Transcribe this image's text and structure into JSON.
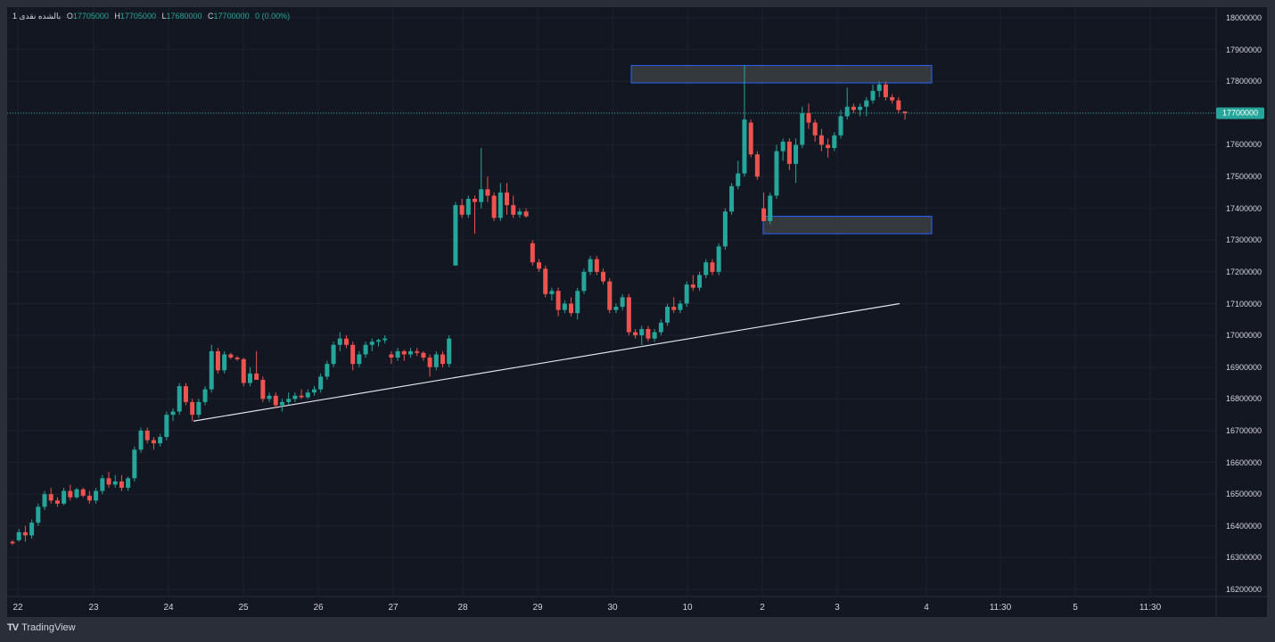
{
  "header": {
    "symbol": "1 بالشده نقدی",
    "o_label": "O",
    "o": "17705000",
    "h_label": "H",
    "h": "17705000",
    "l_label": "L",
    "l": "17680000",
    "c_label": "C",
    "c": "17700000",
    "change": "0 (0.00%)"
  },
  "footer": {
    "logo": "TV",
    "brand": "TradingView"
  },
  "colors": {
    "up": "#26a69a",
    "down": "#ef5350",
    "background": "#131722",
    "grid": "#1e222d",
    "zone": "#3c4043",
    "zone_border": "#2962ff"
  },
  "chart_data": {
    "type": "candlestick",
    "title": "",
    "ylim": [
      16170000,
      18050000
    ],
    "y_ticks": [
      "18000000",
      "17900000",
      "17800000",
      "17700000",
      "17600000",
      "17500000",
      "17400000",
      "17300000",
      "17200000",
      "17100000",
      "17000000",
      "16900000",
      "16800000",
      "16700000",
      "16600000",
      "16500000",
      "16400000",
      "16300000",
      "16200000"
    ],
    "x_ticks": [
      "22",
      "23",
      "24",
      "25",
      "26",
      "27",
      "28",
      "29",
      "30",
      "10",
      "2",
      "3",
      "4",
      "11:30",
      "5",
      "11:30"
    ],
    "last_price": "17700000",
    "candles": [
      [
        16350000,
        16355000,
        16340000,
        16345000
      ],
      [
        16355000,
        16390000,
        16350000,
        16380000
      ],
      [
        16380000,
        16400000,
        16350000,
        16370000
      ],
      [
        16370000,
        16420000,
        16360000,
        16410000
      ],
      [
        16410000,
        16470000,
        16400000,
        16460000
      ],
      [
        16460000,
        16510000,
        16450000,
        16500000
      ],
      [
        16500000,
        16520000,
        16470000,
        16480000
      ],
      [
        16480000,
        16490000,
        16460000,
        16470000
      ],
      [
        16470000,
        16520000,
        16465000,
        16510000
      ],
      [
        16510000,
        16530000,
        16480000,
        16490000
      ],
      [
        16490000,
        16520000,
        16485000,
        16515000
      ],
      [
        16515000,
        16520000,
        16490000,
        16495000
      ],
      [
        16495000,
        16510000,
        16470000,
        16480000
      ],
      [
        16480000,
        16520000,
        16470000,
        16510000
      ],
      [
        16510000,
        16560000,
        16500000,
        16550000
      ],
      [
        16550000,
        16570000,
        16520000,
        16530000
      ],
      [
        16530000,
        16560000,
        16520000,
        16540000
      ],
      [
        16540000,
        16560000,
        16510000,
        16520000
      ],
      [
        16520000,
        16555000,
        16510000,
        16550000
      ],
      [
        16550000,
        16650000,
        16540000,
        16640000
      ],
      [
        16640000,
        16710000,
        16630000,
        16700000
      ],
      [
        16700000,
        16710000,
        16660000,
        16670000
      ],
      [
        16670000,
        16680000,
        16640000,
        16660000
      ],
      [
        16660000,
        16690000,
        16650000,
        16680000
      ],
      [
        16680000,
        16760000,
        16670000,
        16750000
      ],
      [
        16750000,
        16770000,
        16730000,
        16760000
      ],
      [
        16760000,
        16850000,
        16750000,
        16840000
      ],
      [
        16840000,
        16850000,
        16780000,
        16790000
      ],
      [
        16790000,
        16800000,
        16730000,
        16750000
      ],
      [
        16750000,
        16800000,
        16740000,
        16790000
      ],
      [
        16790000,
        16840000,
        16780000,
        16830000
      ],
      [
        16830000,
        16970000,
        16820000,
        16950000
      ],
      [
        16950000,
        16960000,
        16880000,
        16890000
      ],
      [
        16890000,
        16950000,
        16880000,
        16940000
      ],
      [
        16940000,
        16945000,
        16925000,
        16930000
      ],
      [
        16930000,
        16935000,
        16920000,
        16925000
      ],
      [
        16925000,
        16930000,
        16840000,
        16850000
      ],
      [
        16850000,
        16900000,
        16840000,
        16880000
      ],
      [
        16880000,
        16950000,
        16860000,
        16860000
      ],
      [
        16860000,
        16870000,
        16790000,
        16800000
      ],
      [
        16800000,
        16820000,
        16790000,
        16810000
      ],
      [
        16810000,
        16820000,
        16770000,
        16780000
      ],
      [
        16780000,
        16800000,
        16760000,
        16790000
      ],
      [
        16790000,
        16820000,
        16780000,
        16800000
      ],
      [
        16800000,
        16820000,
        16790000,
        16810000
      ],
      [
        16810000,
        16830000,
        16800000,
        16805000
      ],
      [
        16805000,
        16830000,
        16800000,
        16820000
      ],
      [
        16820000,
        16840000,
        16810000,
        16830000
      ],
      [
        16830000,
        16880000,
        16820000,
        16870000
      ],
      [
        16870000,
        16920000,
        16860000,
        16910000
      ],
      [
        16910000,
        16980000,
        16900000,
        16970000
      ],
      [
        16970000,
        17010000,
        16950000,
        16990000
      ],
      [
        16990000,
        17000000,
        16960000,
        16970000
      ],
      [
        16970000,
        16980000,
        16890000,
        16910000
      ],
      [
        16910000,
        16950000,
        16900000,
        16940000
      ],
      [
        16940000,
        16980000,
        16930000,
        16970000
      ],
      [
        16970000,
        16990000,
        16950000,
        16980000
      ],
      [
        16980000,
        16990000,
        16965000,
        16985000
      ],
      [
        16985000,
        17000000,
        16975000,
        16990000
      ],
      [
        16940000,
        16950000,
        16910000,
        16930000
      ],
      [
        16930000,
        16960000,
        16920000,
        16950000
      ],
      [
        16950000,
        16955000,
        16920000,
        16940000
      ],
      [
        16940000,
        16960000,
        16930000,
        16950000
      ],
      [
        16950000,
        16960000,
        16935000,
        16945000
      ],
      [
        16945000,
        16950000,
        16920000,
        16930000
      ],
      [
        16930000,
        16940000,
        16870000,
        16900000
      ],
      [
        16900000,
        16950000,
        16890000,
        16940000
      ],
      [
        16940000,
        16950000,
        16900000,
        16910000
      ],
      [
        16910000,
        17000000,
        16900000,
        16990000
      ],
      [
        17220000,
        17420000,
        17220000,
        17410000
      ],
      [
        17410000,
        17430000,
        17370000,
        17380000
      ],
      [
        17380000,
        17440000,
        17370000,
        17430000
      ],
      [
        17430000,
        17440000,
        17320000,
        17420000
      ],
      [
        17420000,
        17590000,
        17400000,
        17460000
      ],
      [
        17460000,
        17500000,
        17420000,
        17440000
      ],
      [
        17440000,
        17450000,
        17360000,
        17370000
      ],
      [
        17370000,
        17480000,
        17360000,
        17450000
      ],
      [
        17450000,
        17480000,
        17380000,
        17410000
      ],
      [
        17410000,
        17440000,
        17370000,
        17380000
      ],
      [
        17380000,
        17400000,
        17370000,
        17390000
      ],
      [
        17390000,
        17400000,
        17370000,
        17375000
      ],
      [
        17290000,
        17300000,
        17220000,
        17230000
      ],
      [
        17230000,
        17240000,
        17200000,
        17210000
      ],
      [
        17210000,
        17220000,
        17120000,
        17130000
      ],
      [
        17130000,
        17150000,
        17110000,
        17140000
      ],
      [
        17140000,
        17150000,
        17060000,
        17080000
      ],
      [
        17080000,
        17110000,
        17070000,
        17100000
      ],
      [
        17100000,
        17120000,
        17060000,
        17070000
      ],
      [
        17070000,
        17150000,
        17050000,
        17140000
      ],
      [
        17140000,
        17210000,
        17130000,
        17200000
      ],
      [
        17200000,
        17250000,
        17190000,
        17240000
      ],
      [
        17240000,
        17250000,
        17190000,
        17200000
      ],
      [
        17200000,
        17210000,
        17160000,
        17170000
      ],
      [
        17170000,
        17180000,
        17070000,
        17080000
      ],
      [
        17080000,
        17100000,
        17070000,
        17090000
      ],
      [
        17090000,
        17130000,
        17080000,
        17120000
      ],
      [
        17120000,
        17130000,
        17000000,
        17010000
      ],
      [
        17010000,
        17020000,
        16990000,
        17000000
      ],
      [
        17000000,
        17030000,
        16970000,
        17020000
      ],
      [
        17020000,
        17030000,
        16980000,
        16990000
      ],
      [
        16990000,
        17020000,
        16980000,
        17010000
      ],
      [
        17010000,
        17050000,
        17000000,
        17040000
      ],
      [
        17040000,
        17100000,
        17030000,
        17090000
      ],
      [
        17090000,
        17120000,
        17070000,
        17080000
      ],
      [
        17080000,
        17110000,
        17070000,
        17100000
      ],
      [
        17100000,
        17170000,
        17090000,
        17160000
      ],
      [
        17160000,
        17190000,
        17140000,
        17150000
      ],
      [
        17150000,
        17200000,
        17140000,
        17190000
      ],
      [
        17190000,
        17240000,
        17180000,
        17230000
      ],
      [
        17230000,
        17240000,
        17190000,
        17200000
      ],
      [
        17200000,
        17290000,
        17190000,
        17280000
      ],
      [
        17280000,
        17400000,
        17270000,
        17390000
      ],
      [
        17390000,
        17480000,
        17380000,
        17470000
      ],
      [
        17470000,
        17550000,
        17460000,
        17510000
      ],
      [
        17510000,
        17850000,
        17500000,
        17680000
      ],
      [
        17670000,
        17680000,
        17560000,
        17570000
      ],
      [
        17570000,
        17580000,
        17490000,
        17500000
      ],
      [
        17400000,
        17450000,
        17360000,
        17360000
      ],
      [
        17360000,
        17450000,
        17350000,
        17440000
      ],
      [
        17440000,
        17600000,
        17430000,
        17580000
      ],
      [
        17580000,
        17620000,
        17550000,
        17610000
      ],
      [
        17610000,
        17620000,
        17520000,
        17540000
      ],
      [
        17540000,
        17620000,
        17480000,
        17600000
      ],
      [
        17600000,
        17720000,
        17590000,
        17700000
      ],
      [
        17700000,
        17730000,
        17650000,
        17670000
      ],
      [
        17670000,
        17680000,
        17610000,
        17630000
      ],
      [
        17630000,
        17650000,
        17580000,
        17600000
      ],
      [
        17600000,
        17620000,
        17560000,
        17590000
      ],
      [
        17590000,
        17640000,
        17580000,
        17630000
      ],
      [
        17630000,
        17710000,
        17620000,
        17690000
      ],
      [
        17690000,
        17780000,
        17680000,
        17720000
      ],
      [
        17720000,
        17730000,
        17700000,
        17710000
      ],
      [
        17710000,
        17730000,
        17690000,
        17720000
      ],
      [
        17720000,
        17750000,
        17690000,
        17740000
      ],
      [
        17740000,
        17790000,
        17730000,
        17770000
      ],
      [
        17770000,
        17800000,
        17750000,
        17790000
      ],
      [
        17790000,
        17800000,
        17740000,
        17750000
      ],
      [
        17750000,
        17760000,
        17730000,
        17740000
      ],
      [
        17740000,
        17750000,
        17700000,
        17710000
      ],
      [
        17705000,
        17705000,
        17680000,
        17700000
      ]
    ],
    "trendline": {
      "from": {
        "day": "24",
        "price": 16730000
      },
      "to": {
        "day": "3",
        "price": 17100000
      }
    },
    "zones": [
      {
        "top": 17850000,
        "bottom": 17795000
      },
      {
        "top": 17375000,
        "bottom": 17320000
      }
    ]
  }
}
